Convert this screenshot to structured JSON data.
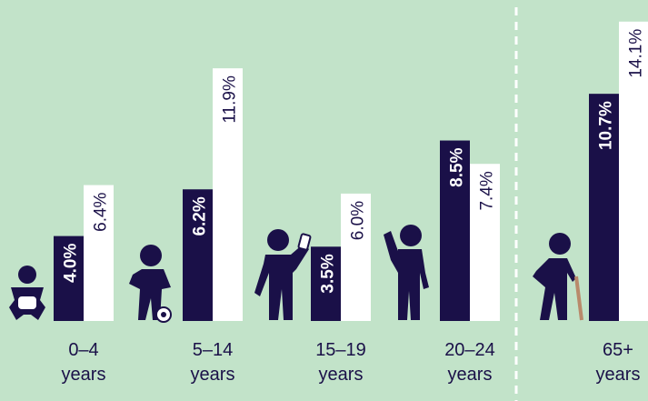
{
  "colors": {
    "background": "#c2e3c9",
    "dark_bar": "#1a1048",
    "light_bar": "#ffffff",
    "divider": "#ffffff"
  },
  "chart_data": {
    "type": "bar",
    "title": "",
    "xlabel": "",
    "ylabel": "",
    "ylim": [
      0,
      15
    ],
    "grid": false,
    "legend": "none",
    "categories": [
      {
        "line1": "0–4",
        "line2": "years",
        "icon": "baby-icon"
      },
      {
        "line1": "5–14",
        "line2": "years",
        "icon": "child-with-soccer-ball-icon"
      },
      {
        "line1": "15–19",
        "line2": "years",
        "icon": "teen-with-phone-icon"
      },
      {
        "line1": "20–24",
        "line2": "years",
        "icon": "young-adult-waving-icon"
      },
      {
        "line1": "65+",
        "line2": "years",
        "icon": "elderly-with-cane-icon"
      }
    ],
    "series": [
      {
        "color": "#1a1048",
        "values": [
          4.0,
          6.2,
          3.5,
          8.5,
          10.7
        ],
        "labels": [
          "4.0%",
          "6.2%",
          "3.5%",
          "8.5%",
          "10.7%"
        ]
      },
      {
        "color": "#ffffff",
        "values": [
          6.4,
          11.9,
          6.0,
          7.4,
          14.1
        ],
        "labels": [
          "6.4%",
          "11.9%",
          "6.0%",
          "7.4%",
          "14.1%"
        ]
      }
    ],
    "divider": "dashed line between 20–24 years and 65+ years groups"
  }
}
